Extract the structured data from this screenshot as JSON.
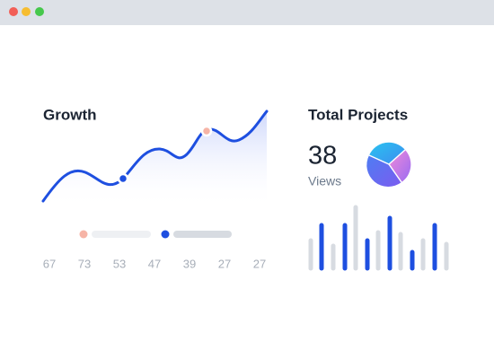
{
  "growth": {
    "title": "Growth",
    "labels": [
      "67",
      "73",
      "53",
      "47",
      "39",
      "27",
      "27"
    ]
  },
  "projects": {
    "title": "Total Projects",
    "count": 38,
    "metric": "Views"
  }
}
